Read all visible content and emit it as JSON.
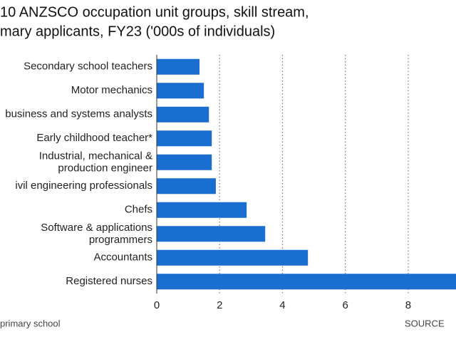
{
  "chart_data": {
    "type": "bar",
    "orientation": "horizontal",
    "title": [
      "10 ANZSCO occupation unit groups, skill stream,",
      "mary applicants, FY23 ('000s of individuals)"
    ],
    "categories": [
      "Secondary school teachers",
      "Motor mechanics",
      "business and systems analysts",
      "Early childhood teacher*",
      "Industrial, mechanical &\nproduction engineer",
      "ivil engineering professionals",
      "Chefs",
      "Software & applications\nprogrammers",
      "Accountants",
      "Registered nurses"
    ],
    "values": [
      1.36,
      1.5,
      1.66,
      1.75,
      1.75,
      1.88,
      2.86,
      3.45,
      4.81,
      9.6
    ],
    "color": "#1a6ecf",
    "xlim": [
      0,
      9.52
    ],
    "xticks": [
      0,
      2,
      4,
      6,
      8
    ],
    "grid": true,
    "footnote": "primary school",
    "source": "SOURCE"
  }
}
